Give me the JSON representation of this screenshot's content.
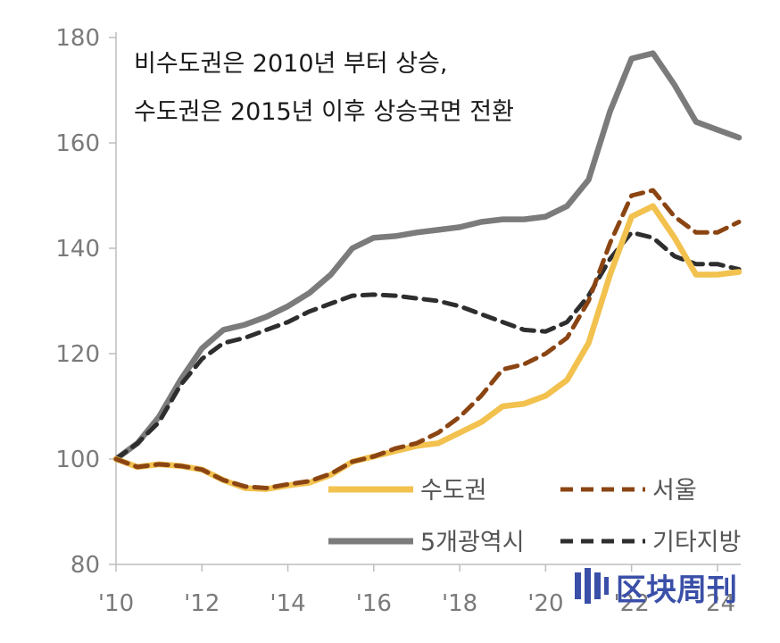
{
  "chart_data": {
    "type": "line",
    "x": [
      2010,
      2010.5,
      2011,
      2011.5,
      2012,
      2012.5,
      2013,
      2013.5,
      2014,
      2014.5,
      2015,
      2015.5,
      2016,
      2016.5,
      2017,
      2017.5,
      2018,
      2018.5,
      2019,
      2019.5,
      2020,
      2020.5,
      2021,
      2021.5,
      2022,
      2022.5,
      2023,
      2023.5,
      2024,
      2024.5
    ],
    "series": [
      {
        "name": "수도권",
        "color": "#f2c14e",
        "dash": "solid",
        "values": [
          100,
          98.5,
          99,
          98.7,
          98,
          96,
          94.5,
          94.3,
          95,
          95.5,
          97,
          99.5,
          100.5,
          101.5,
          102.5,
          103,
          105,
          107,
          110,
          110.5,
          112,
          115,
          122,
          135,
          146,
          148,
          142,
          135,
          135,
          135.5
        ]
      },
      {
        "name": "서울",
        "color": "#8b4513",
        "dash": "dashed",
        "values": [
          100,
          98.5,
          99,
          98.7,
          98,
          96,
          94.8,
          94.5,
          95.2,
          95.8,
          97.2,
          99.5,
          100.5,
          102,
          103,
          105,
          108,
          112,
          117,
          118,
          120,
          123,
          130,
          141,
          150,
          151,
          146,
          143,
          143,
          145
        ]
      },
      {
        "name": "5개광역시",
        "color": "#7b7b7b",
        "dash": "solid",
        "values": [
          100,
          103,
          108,
          115,
          121,
          124.5,
          125.5,
          127,
          129,
          131.5,
          135,
          140,
          142,
          142.3,
          143,
          143.5,
          144,
          145,
          145.5,
          145.5,
          146,
          148,
          153,
          166,
          176,
          177,
          171,
          164,
          162.5,
          161
        ]
      },
      {
        "name": "기타지방",
        "color": "#2e2e2e",
        "dash": "dashed",
        "values": [
          100,
          103,
          107,
          114,
          119,
          122,
          123,
          124.5,
          126,
          128,
          129.5,
          131,
          131.2,
          131,
          130.5,
          130,
          129,
          127.5,
          126,
          124.5,
          124.2,
          126,
          131,
          138,
          143,
          142,
          138.5,
          137,
          137,
          136
        ]
      }
    ],
    "xticks": [
      "'10",
      "'12",
      "'14",
      "'16",
      "'18",
      "'20",
      "'22",
      "'24"
    ],
    "yticks": [
      "80",
      "100",
      "120",
      "140",
      "160",
      "180"
    ],
    "ylim": [
      80,
      180
    ],
    "xlim": [
      2010,
      2024.5
    ],
    "annotation": [
      "비수도권은 2010년 부터 상승,",
      "수도권은 2015년 이후 상승국면 전환"
    ],
    "legend": {
      "position": "bottom-right",
      "columns": 2
    },
    "watermark": "区块周刊",
    "grid": false,
    "title": "",
    "xlabel": "",
    "ylabel": ""
  }
}
